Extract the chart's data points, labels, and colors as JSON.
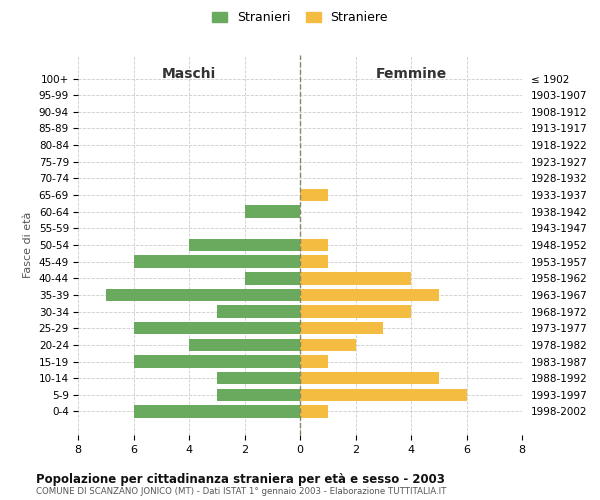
{
  "age_groups": [
    "0-4",
    "5-9",
    "10-14",
    "15-19",
    "20-24",
    "25-29",
    "30-34",
    "35-39",
    "40-44",
    "45-49",
    "50-54",
    "55-59",
    "60-64",
    "65-69",
    "70-74",
    "75-79",
    "80-84",
    "85-89",
    "90-94",
    "95-99",
    "100+"
  ],
  "birth_years": [
    "1998-2002",
    "1993-1997",
    "1988-1992",
    "1983-1987",
    "1978-1982",
    "1973-1977",
    "1968-1972",
    "1963-1967",
    "1958-1962",
    "1953-1957",
    "1948-1952",
    "1943-1947",
    "1938-1942",
    "1933-1937",
    "1928-1932",
    "1923-1927",
    "1918-1922",
    "1913-1917",
    "1908-1912",
    "1903-1907",
    "≤ 1902"
  ],
  "maschi": [
    6,
    3,
    3,
    6,
    4,
    6,
    3,
    7,
    2,
    6,
    4,
    0,
    2,
    0,
    0,
    0,
    0,
    0,
    0,
    0,
    0
  ],
  "femmine": [
    1,
    6,
    5,
    1,
    2,
    3,
    4,
    5,
    4,
    1,
    1,
    0,
    0,
    1,
    0,
    0,
    0,
    0,
    0,
    0,
    0
  ],
  "color_maschi": "#6aaa5e",
  "color_femmine": "#f5bc42",
  "title": "Popolazione per cittadinanza straniera per età e sesso - 2003",
  "subtitle": "COMUNE DI SCANZANO JONICO (MT) - Dati ISTAT 1° gennaio 2003 - Elaborazione TUTTITALIA.IT",
  "xlabel_left": "Maschi",
  "xlabel_right": "Femmine",
  "ylabel_left": "Fasce di età",
  "legend_maschi": "Stranieri",
  "legend_femmine": "Straniere",
  "xlim": 8,
  "background_color": "#ffffff",
  "grid_color": "#cccccc"
}
